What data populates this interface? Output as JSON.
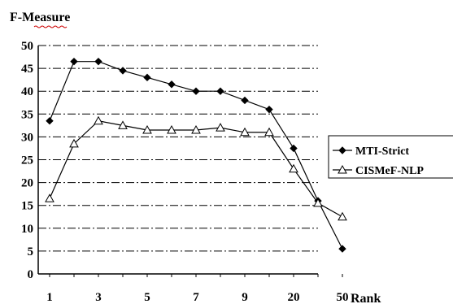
{
  "chart_data": {
    "type": "line",
    "ylabel": "F-Measure",
    "xlabel": "Rank",
    "ylim": [
      0,
      50
    ],
    "yticks": [
      0,
      5,
      10,
      15,
      20,
      25,
      30,
      35,
      40,
      45,
      50
    ],
    "x": [
      "1",
      "2",
      "3",
      "4",
      "5",
      "6",
      "7",
      "8",
      "9",
      "10",
      "20",
      "30",
      "50"
    ],
    "xtick_labels": [
      "1",
      "",
      "3",
      "",
      "5",
      "",
      "7",
      "",
      "9",
      "",
      "20",
      "",
      "50"
    ],
    "grid": "horizontal dash-dot",
    "legend_position": "right",
    "series": [
      {
        "name": "MTI-Strict",
        "marker": "diamond",
        "values": [
          33.5,
          46.5,
          46.5,
          44.5,
          43,
          41.5,
          40,
          40,
          38,
          36,
          27.5,
          16,
          5.5
        ]
      },
      {
        "name": "CISMeF-NLP",
        "marker": "triangle-open",
        "values": [
          16.5,
          28.5,
          33.5,
          32.5,
          31.5,
          31.5,
          31.5,
          32,
          31,
          31,
          23,
          15.5,
          12.5
        ]
      }
    ],
    "colors": {
      "line": "#000000",
      "grid": "#000000",
      "background": "#ffffff"
    }
  }
}
